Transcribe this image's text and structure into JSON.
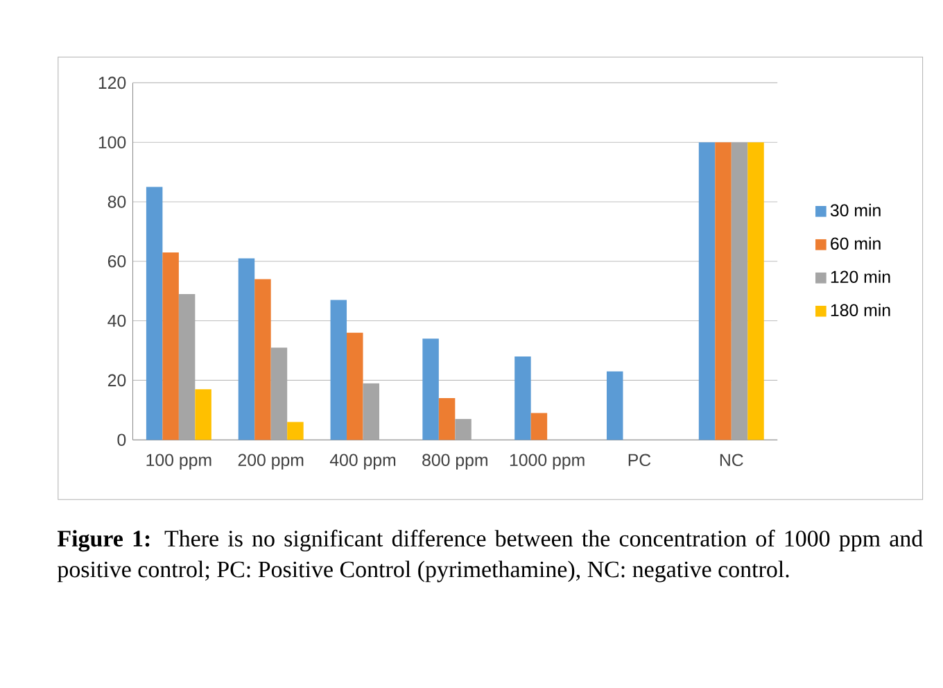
{
  "chart_data": {
    "type": "bar",
    "categories": [
      "100 ppm",
      "200 ppm",
      "400 ppm",
      "800 ppm",
      "1000 ppm",
      "PC",
      "NC"
    ],
    "series": [
      {
        "name": "30 min",
        "color": "#5b9bd5",
        "values": [
          85,
          61,
          47,
          34,
          28,
          23,
          100
        ]
      },
      {
        "name": "60 min",
        "color": "#ed7d31",
        "values": [
          63,
          54,
          36,
          14,
          9,
          null,
          100
        ]
      },
      {
        "name": "120 min",
        "color": "#a5a5a5",
        "values": [
          49,
          31,
          19,
          7,
          null,
          null,
          100
        ]
      },
      {
        "name": "180 min",
        "color": "#ffc000",
        "values": [
          17,
          6,
          null,
          null,
          null,
          null,
          100
        ]
      }
    ],
    "ylim": [
      0,
      120
    ],
    "yticks": [
      0,
      20,
      40,
      60,
      80,
      100,
      120
    ],
    "grid": "y",
    "legend": "right",
    "annotations": [
      "**Figure 1:** There is no significant difference between the concentration of 1000 ppm and positive control; PC: Positive Control (pyrimethamine), NC: negative control."
    ]
  }
}
